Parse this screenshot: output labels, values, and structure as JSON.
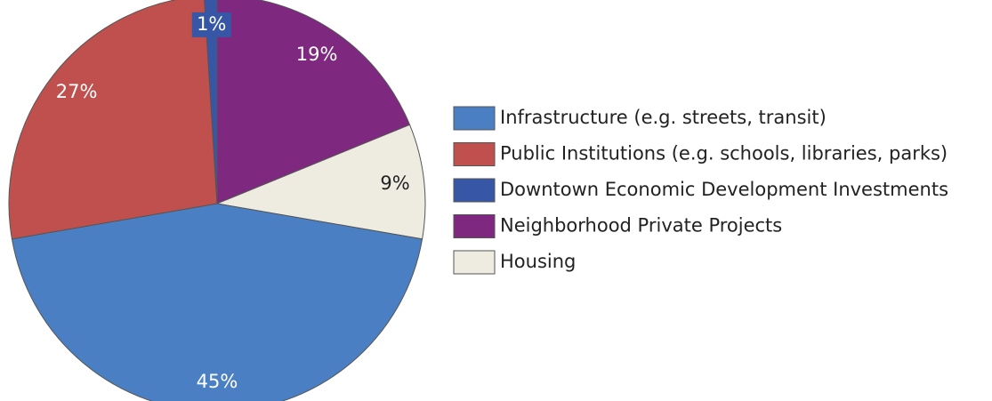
{
  "chart_data": {
    "type": "pie",
    "categories": [
      "Infrastructure (e.g. streets, transit)",
      "Public Institutions (e.g. schools, libraries, parks)",
      "Downtown Economic Development Investments",
      "Neighborhood Private Projects",
      "Housing"
    ],
    "values": [
      45,
      27,
      1,
      19,
      9
    ],
    "value_labels": [
      "45%",
      "27%",
      "1%",
      "19%",
      "9%"
    ],
    "colors": [
      "#4a80c3",
      "#c0504d",
      "#3756a6",
      "#7e2880",
      "#eeece1"
    ],
    "slice_order": [
      3,
      4,
      0,
      1,
      2
    ]
  }
}
